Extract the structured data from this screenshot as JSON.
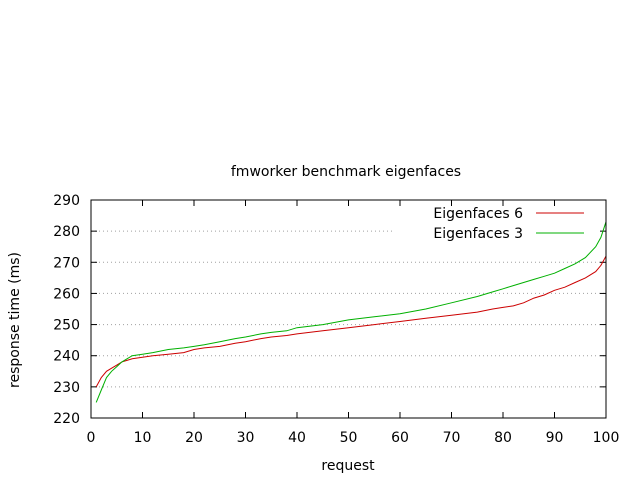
{
  "chart_data": {
    "type": "line",
    "title": "fmworker benchmark eigenfaces",
    "xlabel": "request",
    "ylabel": "response time (ms)",
    "xlim": [
      0,
      100
    ],
    "ylim": [
      220,
      290
    ],
    "x_ticks": [
      0,
      10,
      20,
      30,
      40,
      50,
      60,
      70,
      80,
      90,
      100
    ],
    "y_ticks": [
      220,
      230,
      240,
      250,
      260,
      270,
      280,
      290
    ],
    "x_tick_labels": [
      "0",
      "10",
      "20",
      "30",
      "40",
      "50",
      "60",
      "70",
      "80",
      "90",
      "100"
    ],
    "y_tick_labels": [
      "220",
      "230",
      "240",
      "250",
      "260",
      "270",
      "280",
      "290"
    ],
    "grid": "horizontal dotted",
    "legend_position": "top-right",
    "series": [
      {
        "name": "Eigenfaces 6",
        "color": "#cc0000",
        "x": [
          1,
          2,
          3,
          4,
          5,
          6,
          7,
          8,
          10,
          12,
          15,
          18,
          20,
          22,
          25,
          28,
          30,
          33,
          35,
          38,
          40,
          45,
          50,
          55,
          60,
          65,
          70,
          75,
          78,
          80,
          82,
          84,
          86,
          88,
          90,
          92,
          94,
          96,
          98,
          99,
          100
        ],
        "values": [
          230,
          233,
          235,
          236,
          237,
          238,
          238.5,
          239,
          239.5,
          240,
          240.5,
          241,
          242,
          242.5,
          243,
          244,
          244.5,
          245.5,
          246,
          246.5,
          247,
          248,
          249,
          250,
          251,
          252,
          253,
          254,
          255,
          255.5,
          256,
          257,
          258.5,
          259.5,
          261,
          262,
          263.5,
          265,
          267,
          269,
          272
        ]
      },
      {
        "name": "Eigenfaces 3",
        "color": "#00b000",
        "x": [
          1,
          2,
          3,
          4,
          5,
          6,
          7,
          8,
          10,
          12,
          15,
          18,
          20,
          22,
          25,
          28,
          30,
          33,
          35,
          38,
          40,
          45,
          50,
          55,
          60,
          65,
          70,
          75,
          78,
          80,
          82,
          84,
          86,
          88,
          90,
          92,
          94,
          96,
          98,
          99,
          100
        ],
        "values": [
          225,
          229,
          233,
          235,
          236.5,
          238,
          239,
          240,
          240.5,
          241,
          242,
          242.5,
          243,
          243.5,
          244.5,
          245.5,
          246,
          247,
          247.5,
          248,
          249,
          250,
          251.5,
          252.5,
          253.5,
          255,
          257,
          259,
          260.5,
          261.5,
          262.5,
          263.5,
          264.5,
          265.5,
          266.5,
          268,
          269.5,
          271.5,
          275,
          278,
          283
        ]
      }
    ]
  }
}
